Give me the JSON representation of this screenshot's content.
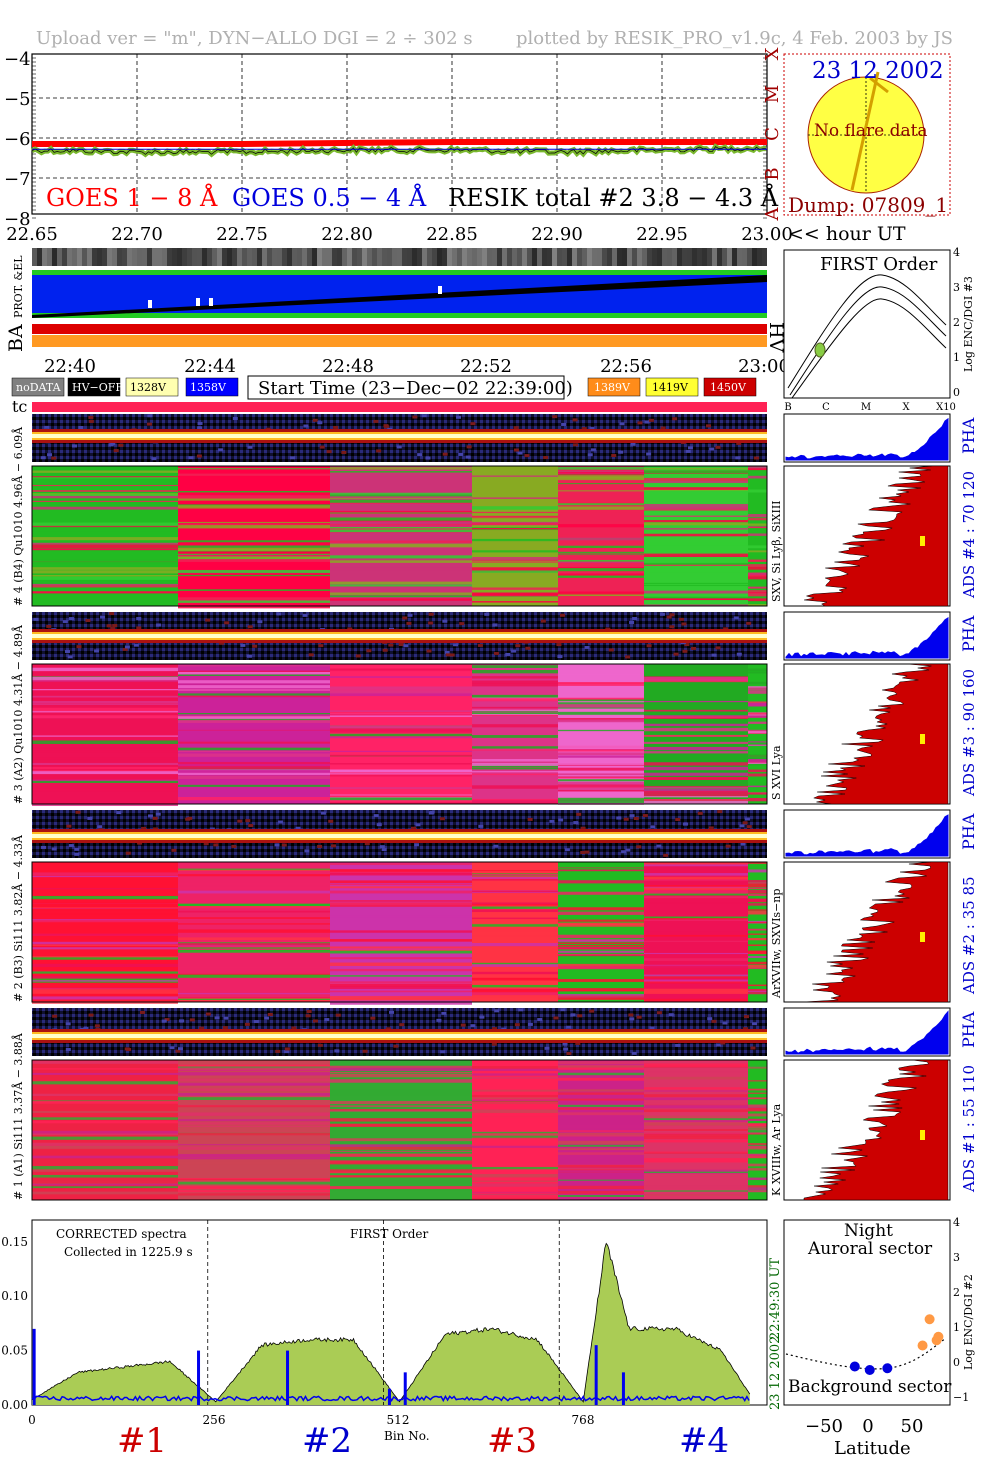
{
  "header": {
    "left": "Upload ver = \"m\", DYN−ALLO DGI =   2 ÷ 302 s",
    "right": "plotted by RESIK_PRO_v1.9c, 4 Feb. 2003 by JS"
  },
  "goes": {
    "yticks": [
      "−4",
      "−5",
      "−6",
      "−7",
      "−8"
    ],
    "xticks": [
      "22.65",
      "22.70",
      "22.75",
      "22.80",
      "22.85",
      "22.90",
      "22.95",
      "23.00"
    ],
    "hour_label": "<< hour UT",
    "class_letters": [
      "X",
      "M",
      "C",
      "B",
      "A"
    ],
    "legend_goes1": "GOES 1 − 8 Å",
    "legend_goes05": "GOES 0.5 − 4 Å",
    "legend_resik": "RESIK total #2  3.8 − 4.3 Å",
    "colors": {
      "goes1": "#ff0000",
      "goes05": "#0000dd",
      "resik": "#000000",
      "green": "#7ab82e"
    }
  },
  "sun": {
    "date": "23 12 2002",
    "noflare": "No flare data",
    "dump": "Dump: 07809_1"
  },
  "status": {
    "prot_label": "PROT. &EL",
    "ba_label": "BA",
    "hv_label": "HV",
    "time_ticks": [
      "22:40",
      "22:44",
      "22:48",
      "22:52",
      "22:56",
      "23:00"
    ],
    "legend_items": [
      {
        "label": "noDATA",
        "bg": "#808080",
        "fg": "#ffffff"
      },
      {
        "label": "HV−OFF",
        "bg": "#000000",
        "fg": "#ffffff"
      },
      {
        "label": "1328V",
        "bg": "#ffffb0",
        "fg": "#000000"
      },
      {
        "label": "1358V",
        "bg": "#0000ff",
        "fg": "#ffffff"
      }
    ],
    "start_time": "Start Time (23−Dec−02 22:39:00)",
    "legend_items_right": [
      {
        "label": "1389V",
        "bg": "#ff8c1a",
        "fg": "#ffffff"
      },
      {
        "label": "1419V",
        "bg": "#ffff33",
        "fg": "#000000"
      },
      {
        "label": "1450V",
        "bg": "#cc0000",
        "fg": "#ffffff"
      }
    ],
    "tc_label": "tc"
  },
  "first_order": {
    "title": "FIRST Order",
    "ylabel": "Log ENC/DGI #3",
    "yticks": [
      "4",
      "3",
      "2",
      "1",
      "0"
    ],
    "xticks": [
      "B",
      "C",
      "M",
      "X",
      "X10"
    ]
  },
  "channels": [
    {
      "label": "# 4 (B4) Qu1010 4.96Å − 6.09Å",
      "lines": "SXV, Si Lyβ, SiXIII",
      "ads": "ADS #4 :    70 120",
      "pha": "PHA"
    },
    {
      "label": "# 3 (A2) Qu1010 4.31Å − 4.89Å",
      "lines": "S XVI Lya",
      "ads": "ADS #3 :    90 160",
      "pha": "PHA"
    },
    {
      "label": "# 2 (B3) Si111 3.82Å − 4.33Å",
      "lines": "ArXVIIw, SXVIs−np",
      "ads": "ADS #2 :    35  85",
      "pha": "PHA"
    },
    {
      "label": "# 1 (A1) Si111 3.37Å − 3.88Å",
      "lines": "K XVIIIw, Ar Lya",
      "ads": "ADS #1 :    55 110",
      "pha": "PHA"
    }
  ],
  "spectrum": {
    "title_line1": "CORRECTED spectra",
    "title_line2": "Collected in  1225.9 s",
    "first_order": "FIRST Order",
    "yticks": [
      "0.15",
      "0.10",
      "0.05",
      "0.00"
    ],
    "xticks": [
      "0",
      "256",
      "512",
      "768"
    ],
    "xlabel": "Bin No.",
    "right_time": "22:49:30 UT",
    "right_date": "23 12 2002",
    "sections": [
      {
        "label": "#1",
        "color": "#cc0000"
      },
      {
        "label": "#2",
        "color": "#0000cc"
      },
      {
        "label": "#3",
        "color": "#cc0000"
      },
      {
        "label": "#4",
        "color": "#0000cc"
      }
    ]
  },
  "orbit": {
    "night": "Night",
    "auroral": "Auroral sector",
    "background": "Background sector",
    "ylabel": "Log ENC/DGI #2",
    "yticks": [
      "4",
      "3",
      "2",
      "1",
      "0",
      "−1"
    ],
    "xticks": [
      "−50",
      "0",
      "50"
    ],
    "xlabel": "Latitude"
  },
  "chart_data": [
    {
      "type": "line",
      "title": "",
      "xlabel": "<< hour UT",
      "ylabel": "",
      "xlim": [
        22.65,
        23.0
      ],
      "ylim": [
        -8,
        -4
      ],
      "series": [
        {
          "name": "GOES 1 − 8 Å",
          "x": [
            22.65,
            22.75,
            22.85,
            22.95,
            23.0
          ],
          "values": [
            -6.15,
            -6.15,
            -6.1,
            -6.1,
            -6.1
          ]
        },
        {
          "name": "RESIK total #2  3.8 − 4.3 Å",
          "x": [
            22.65,
            22.7,
            22.75,
            22.8,
            22.85,
            22.9,
            22.95,
            23.0
          ],
          "values": [
            -6.3,
            -6.35,
            -6.35,
            -6.3,
            -6.3,
            -6.35,
            -6.3,
            -6.25
          ]
        }
      ]
    },
    {
      "type": "line",
      "title": "CORRECTED spectra",
      "xlabel": "Bin No.",
      "ylabel": "",
      "xlim": [
        0,
        1024
      ],
      "ylim": [
        0,
        0.17
      ],
      "series": [
        {
          "name": "",
          "x": [
            0,
            64,
            128,
            192,
            256,
            320,
            384,
            448,
            512,
            576,
            640,
            704,
            768,
            800,
            832,
            896,
            960,
            1000
          ],
          "values": [
            0.005,
            0.03,
            0.035,
            0.04,
            0.003,
            0.055,
            0.06,
            0.06,
            0.003,
            0.065,
            0.07,
            0.06,
            0.003,
            0.15,
            0.07,
            0.07,
            0.05,
            0.01
          ]
        }
      ]
    },
    {
      "type": "scatter",
      "title": "",
      "xlabel": "Latitude",
      "ylabel": "Log ENC/DGI #2",
      "ylim": [
        -1,
        4
      ],
      "series": [
        {
          "name": "",
          "x": [
            -15,
            2,
            22
          ],
          "values": [
            0.1,
            0.0,
            0.05
          ]
        },
        {
          "name": "",
          "x": [
            62,
            70,
            78,
            80
          ],
          "values": [
            0.7,
            1.45,
            0.85,
            0.95
          ]
        }
      ]
    }
  ]
}
